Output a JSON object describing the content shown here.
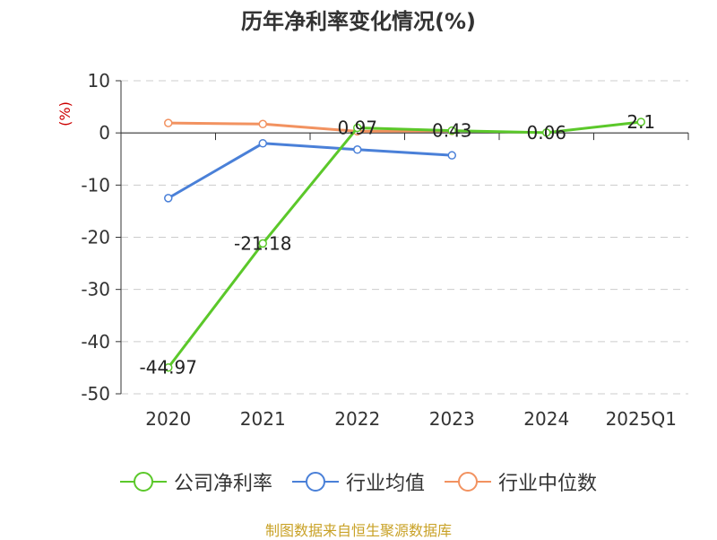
{
  "chart_data": {
    "type": "line",
    "title": "历年净利率变化情况(%)",
    "ylabel": "(%)",
    "xlabel": "",
    "categories": [
      "2020",
      "2021",
      "2022",
      "2023",
      "2024",
      "2025Q1"
    ],
    "ylim": [
      -50,
      10
    ],
    "yticks": [
      10,
      0,
      -10,
      -20,
      -30,
      -40,
      -50
    ],
    "grid": true,
    "legend_position": "bottom",
    "series": [
      {
        "name": "公司净利率",
        "color": "#5bc82a",
        "values": [
          -44.97,
          -21.18,
          0.97,
          0.43,
          0.06,
          2.1
        ],
        "labels": [
          "-44.97",
          "-21.18",
          "0.97",
          "0.43",
          "0.06",
          "2.1"
        ]
      },
      {
        "name": "行业均值",
        "color": "#4a80d8",
        "values": [
          -12.5,
          -2.0,
          -3.2,
          -4.3,
          null,
          null
        ]
      },
      {
        "name": "行业中位数",
        "color": "#f29260",
        "values": [
          1.9,
          1.7,
          0.3,
          0.4,
          null,
          null
        ]
      }
    ]
  },
  "source_note": "制图数据来自恒生聚源数据库"
}
